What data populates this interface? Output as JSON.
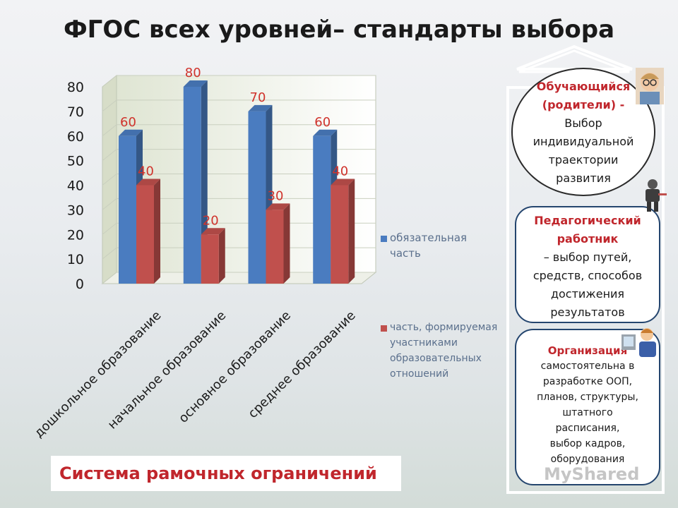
{
  "title": "ФГОС всех уровней– стандарты выбора",
  "chart_data": {
    "type": "bar",
    "categories": [
      "дошкольное образование",
      "начальное образование",
      "основное образование",
      "среднее образование"
    ],
    "series": [
      {
        "name": "обязательная часть",
        "values": [
          60,
          80,
          70,
          60
        ],
        "color": "#4a7cc0"
      },
      {
        "name": "часть, формируемая участниками образовательных отношений",
        "values": [
          40,
          20,
          30,
          40
        ],
        "color": "#c0504d"
      }
    ],
    "y_ticks": [
      "0",
      "10",
      "20",
      "30",
      "40",
      "50",
      "60",
      "70",
      "80"
    ],
    "ylim": [
      0,
      80
    ],
    "data_labels": true,
    "legend_position": "right"
  },
  "legend": {
    "item1_line1": "обязательная",
    "item1_line2": "часть",
    "item2_line1": "часть, формируемая",
    "item2_line2": "участниками",
    "item2_line3": "образовательных",
    "item2_line4": "отношений"
  },
  "footer": "Система рамочных ограничений",
  "sidebar": {
    "student": {
      "title_line1": "Обучающийся",
      "title_line2": "(родители) -",
      "line1": "Выбор",
      "line2": "индивидуальной",
      "line3": "траектории",
      "line4": "развития"
    },
    "teacher": {
      "title_line1": "Педагогический",
      "title_line2": "работник",
      "line1": "– выбор путей,",
      "line2": "средств, способов",
      "line3": "достижения",
      "line4": "результатов"
    },
    "organization": {
      "title": "Организация",
      "line1": "самостоятельна в",
      "line2": "разработке ООП,",
      "line3": "планов, структуры,",
      "line4": "штатного",
      "line5": "расписания,",
      "line6": "выбор кадров,",
      "line7": "оборудования"
    }
  },
  "watermark": "MyShared"
}
